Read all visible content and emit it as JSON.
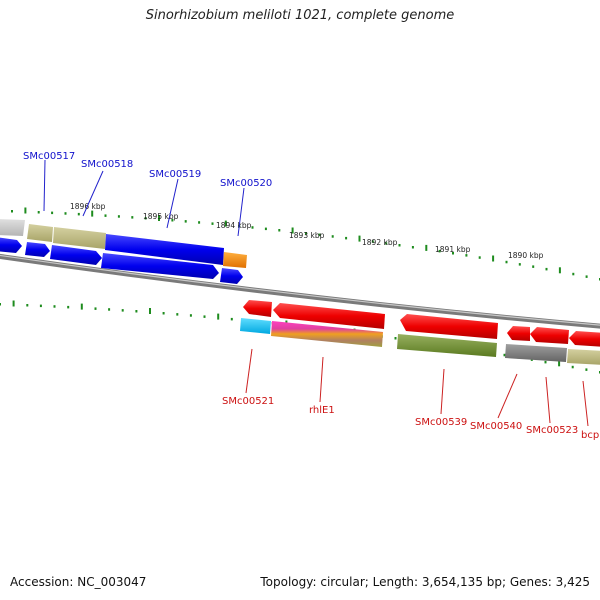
{
  "title": "Sinorhizobium meliloti 1021, complete genome",
  "footer": {
    "accession": "Accession: NC_003047",
    "stats": "Topology: circular; Length: 3,654,135 bp; Genes: 3,425"
  },
  "colors": {
    "forward_label": "#1111cc",
    "reverse_label": "#cc1111",
    "ticks": "#1e8c1e",
    "backbone": "#888888"
  },
  "kbp_labels": [
    "1896 kbp",
    "1895 kbp",
    "1894 kbp",
    "1893 kbp",
    "1892 kbp",
    "1891 kbp",
    "1890 kbp"
  ],
  "gene_labels": {
    "forward": [
      "SMc00517",
      "SMc00518",
      "SMc00519",
      "SMc00520"
    ],
    "reverse": [
      "SMc00521",
      "rhlE1",
      "SMc00539",
      "SMc00540",
      "SMc00523",
      "bcp"
    ]
  }
}
